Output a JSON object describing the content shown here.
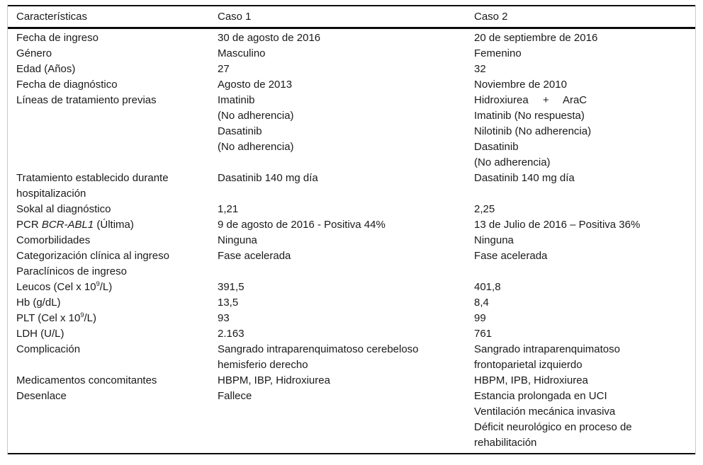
{
  "styles": {
    "rule_color": "#0c0c0c",
    "frame_border_color": "#c9c9c9",
    "text_color": "#1a1a1a",
    "background_color": "#ffffff"
  },
  "table": {
    "headers": [
      {
        "label": "Características"
      },
      {
        "label": "Caso 1"
      },
      {
        "label": "Caso 2"
      }
    ],
    "rows": [
      {
        "name": "fecha-de-ingreso",
        "label": [
          {
            "p": [
              {
                "t": "Fecha de ingreso"
              }
            ]
          }
        ],
        "caso1": [
          {
            "p": [
              {
                "t": "30 de agosto de 2016"
              }
            ]
          }
        ],
        "caso2": [
          {
            "p": [
              {
                "t": "20 de septiembre de 2016"
              }
            ]
          }
        ]
      },
      {
        "name": "genero",
        "label": [
          {
            "p": [
              {
                "t": "Género"
              }
            ]
          }
        ],
        "caso1": [
          {
            "p": [
              {
                "t": "Masculino"
              }
            ]
          }
        ],
        "caso2": [
          {
            "p": [
              {
                "t": "Femenino"
              }
            ]
          }
        ]
      },
      {
        "name": "edad",
        "label": [
          {
            "p": [
              {
                "t": "Edad (Años)"
              }
            ]
          }
        ],
        "caso1": [
          {
            "p": [
              {
                "t": "27"
              }
            ]
          }
        ],
        "caso2": [
          {
            "p": [
              {
                "t": "32"
              }
            ]
          }
        ]
      },
      {
        "name": "fecha-de-diagnostico",
        "label": [
          {
            "p": [
              {
                "t": "Fecha de diagnóstico"
              }
            ]
          }
        ],
        "caso1": [
          {
            "p": [
              {
                "t": "Agosto de 2013"
              }
            ]
          }
        ],
        "caso2": [
          {
            "p": [
              {
                "t": "Noviembre de 2010"
              }
            ]
          }
        ]
      },
      {
        "name": "lineas-de-tratamiento-previas",
        "label": [
          {
            "p": [
              {
                "t": "Líneas de tratamiento previas"
              }
            ]
          }
        ],
        "caso1": [
          {
            "p": [
              {
                "t": "Imatinib"
              }
            ]
          },
          {
            "p": [
              {
                "t": "(No adherencia)"
              }
            ]
          },
          {
            "p": [
              {
                "t": "Dasatinib"
              }
            ]
          },
          {
            "p": [
              {
                "t": "(No adherencia)"
              }
            ]
          }
        ],
        "caso2": [
          {
            "p": [
              {
                "t": "Hidroxiurea + AraC"
              }
            ],
            "j": true
          },
          {
            "p": [
              {
                "t": "Imatinib (No respuesta)"
              }
            ]
          },
          {
            "p": [
              {
                "t": "Nilotinib (No adherencia)"
              }
            ]
          },
          {
            "p": [
              {
                "t": "Dasatinib"
              }
            ]
          },
          {
            "p": [
              {
                "t": "(No adherencia)"
              }
            ]
          }
        ]
      },
      {
        "name": "tratamiento-establecido",
        "label": [
          {
            "p": [
              {
                "t": "Tratamiento establecido durante"
              }
            ]
          },
          {
            "p": [
              {
                "t": "hospitalización"
              }
            ]
          }
        ],
        "caso1": [
          {
            "p": [
              {
                "t": "Dasatinib 140 mg día"
              }
            ]
          }
        ],
        "caso2": [
          {
            "p": [
              {
                "t": "Dasatinib 140 mg día"
              }
            ]
          }
        ]
      },
      {
        "name": "sokal-al-diagnostico",
        "label": [
          {
            "p": [
              {
                "t": "Sokal al diagnóstico"
              }
            ]
          }
        ],
        "caso1": [
          {
            "p": [
              {
                "t": "1,21"
              }
            ]
          }
        ],
        "caso2": [
          {
            "p": [
              {
                "t": "2,25"
              }
            ]
          }
        ]
      },
      {
        "name": "pcr-bcr-abl1",
        "label": [
          {
            "p": [
              {
                "t": "PCR "
              },
              {
                "t": "BCR-ABL1",
                "s": "i"
              },
              {
                "t": " (Última)"
              }
            ]
          }
        ],
        "caso1": [
          {
            "p": [
              {
                "t": "9 de agosto de 2016 - Positiva 44%"
              }
            ]
          }
        ],
        "caso2": [
          {
            "p": [
              {
                "t": "13 de Julio de 2016 – Positiva 36%"
              }
            ]
          }
        ]
      },
      {
        "name": "comorbilidades",
        "label": [
          {
            "p": [
              {
                "t": "Comorbilidades"
              }
            ]
          }
        ],
        "caso1": [
          {
            "p": [
              {
                "t": "Ninguna"
              }
            ]
          }
        ],
        "caso2": [
          {
            "p": [
              {
                "t": "Ninguna"
              }
            ]
          }
        ]
      },
      {
        "name": "categorizacion-clinica",
        "label": [
          {
            "p": [
              {
                "t": "Categorización clínica al ingreso"
              }
            ]
          }
        ],
        "caso1": [
          {
            "p": [
              {
                "t": "Fase acelerada"
              }
            ]
          }
        ],
        "caso2": [
          {
            "p": [
              {
                "t": "Fase acelerada"
              }
            ]
          }
        ]
      },
      {
        "name": "paraclinicos-de-ingreso",
        "label": [
          {
            "p": [
              {
                "t": "Paraclínicos de ingreso"
              }
            ]
          }
        ],
        "caso1": [],
        "caso2": []
      },
      {
        "name": "leucos",
        "label": [
          {
            "p": [
              {
                "t": "Leucos (Cel x 10"
              },
              {
                "t": "9",
                "s": "sup"
              },
              {
                "t": "/L)"
              }
            ]
          }
        ],
        "caso1": [
          {
            "p": [
              {
                "t": "391,5"
              }
            ]
          }
        ],
        "caso2": [
          {
            "p": [
              {
                "t": "401,8"
              }
            ]
          }
        ]
      },
      {
        "name": "hb",
        "label": [
          {
            "p": [
              {
                "t": "Hb (g/dL)"
              }
            ]
          }
        ],
        "caso1": [
          {
            "p": [
              {
                "t": "13,5"
              }
            ]
          }
        ],
        "caso2": [
          {
            "p": [
              {
                "t": "8,4"
              }
            ]
          }
        ]
      },
      {
        "name": "plt",
        "label": [
          {
            "p": [
              {
                "t": "PLT (Cel x 10"
              },
              {
                "t": "9",
                "s": "sup"
              },
              {
                "t": "/L)"
              }
            ]
          }
        ],
        "caso1": [
          {
            "p": [
              {
                "t": "93"
              }
            ]
          }
        ],
        "caso2": [
          {
            "p": [
              {
                "t": "99"
              }
            ]
          }
        ]
      },
      {
        "name": "ldh",
        "label": [
          {
            "p": [
              {
                "t": "LDH (U/L)"
              }
            ]
          }
        ],
        "caso1": [
          {
            "p": [
              {
                "t": "2.163"
              }
            ]
          }
        ],
        "caso2": [
          {
            "p": [
              {
                "t": "761"
              }
            ]
          }
        ]
      },
      {
        "name": "complicacion",
        "label": [
          {
            "p": [
              {
                "t": "Complicación"
              }
            ]
          }
        ],
        "caso1": [
          {
            "p": [
              {
                "t": "Sangrado intraparenquimatoso cerebeloso"
              }
            ]
          },
          {
            "p": [
              {
                "t": "hemisferio derecho"
              }
            ]
          }
        ],
        "caso2": [
          {
            "p": [
              {
                "t": "Sangrado intraparenquimatoso"
              }
            ]
          },
          {
            "p": [
              {
                "t": "frontoparietal izquierdo"
              }
            ]
          }
        ]
      },
      {
        "name": "medicamentos-concomitantes",
        "label": [
          {
            "p": [
              {
                "t": "Medicamentos concomitantes"
              }
            ]
          }
        ],
        "caso1": [
          {
            "p": [
              {
                "t": "HBPM, IBP, Hidroxiurea"
              }
            ]
          }
        ],
        "caso2": [
          {
            "p": [
              {
                "t": "HBPM, IPB, Hidroxiurea"
              }
            ]
          }
        ]
      },
      {
        "name": "desenlace",
        "label": [
          {
            "p": [
              {
                "t": "Desenlace"
              }
            ]
          }
        ],
        "caso1": [
          {
            "p": [
              {
                "t": "Fallece"
              }
            ]
          }
        ],
        "caso2": [
          {
            "p": [
              {
                "t": "Estancia prolongada en UCI"
              }
            ]
          },
          {
            "p": [
              {
                "t": "Ventilación mecánica invasiva"
              }
            ]
          },
          {
            "p": [
              {
                "t": "Déficit neurológico en proceso de"
              }
            ]
          },
          {
            "p": [
              {
                "t": "rehabilitación"
              }
            ]
          }
        ]
      }
    ]
  }
}
